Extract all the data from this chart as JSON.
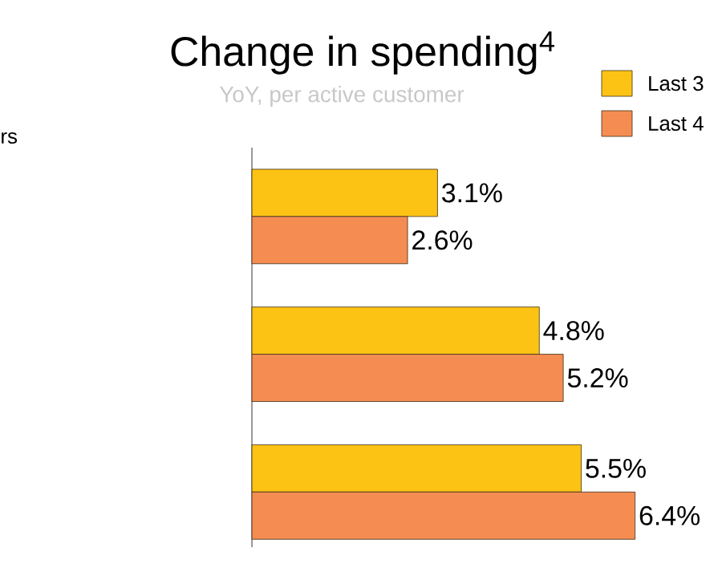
{
  "chart_data": {
    "type": "bar",
    "orientation": "horizontal",
    "title": "Change in spending$^{4}$",
    "subtitle": "YoY, per active customer",
    "annotations": [
      "rs"
    ],
    "categories": [
      null,
      null,
      null
    ],
    "series": [
      {
        "name": "Last 3",
        "color": "#fcc314",
        "values": [
          3.1,
          4.8,
          5.5
        ],
        "value_labels": [
          "3.1%",
          "4.8%",
          "5.5%"
        ]
      },
      {
        "name": "Last 4",
        "color": "#f58d53",
        "values": [
          2.6,
          5.2,
          6.4
        ],
        "value_labels": [
          "2.6%",
          "5.2%",
          "6.4%"
        ]
      }
    ],
    "legend": "top right",
    "tick_labels": false
  }
}
